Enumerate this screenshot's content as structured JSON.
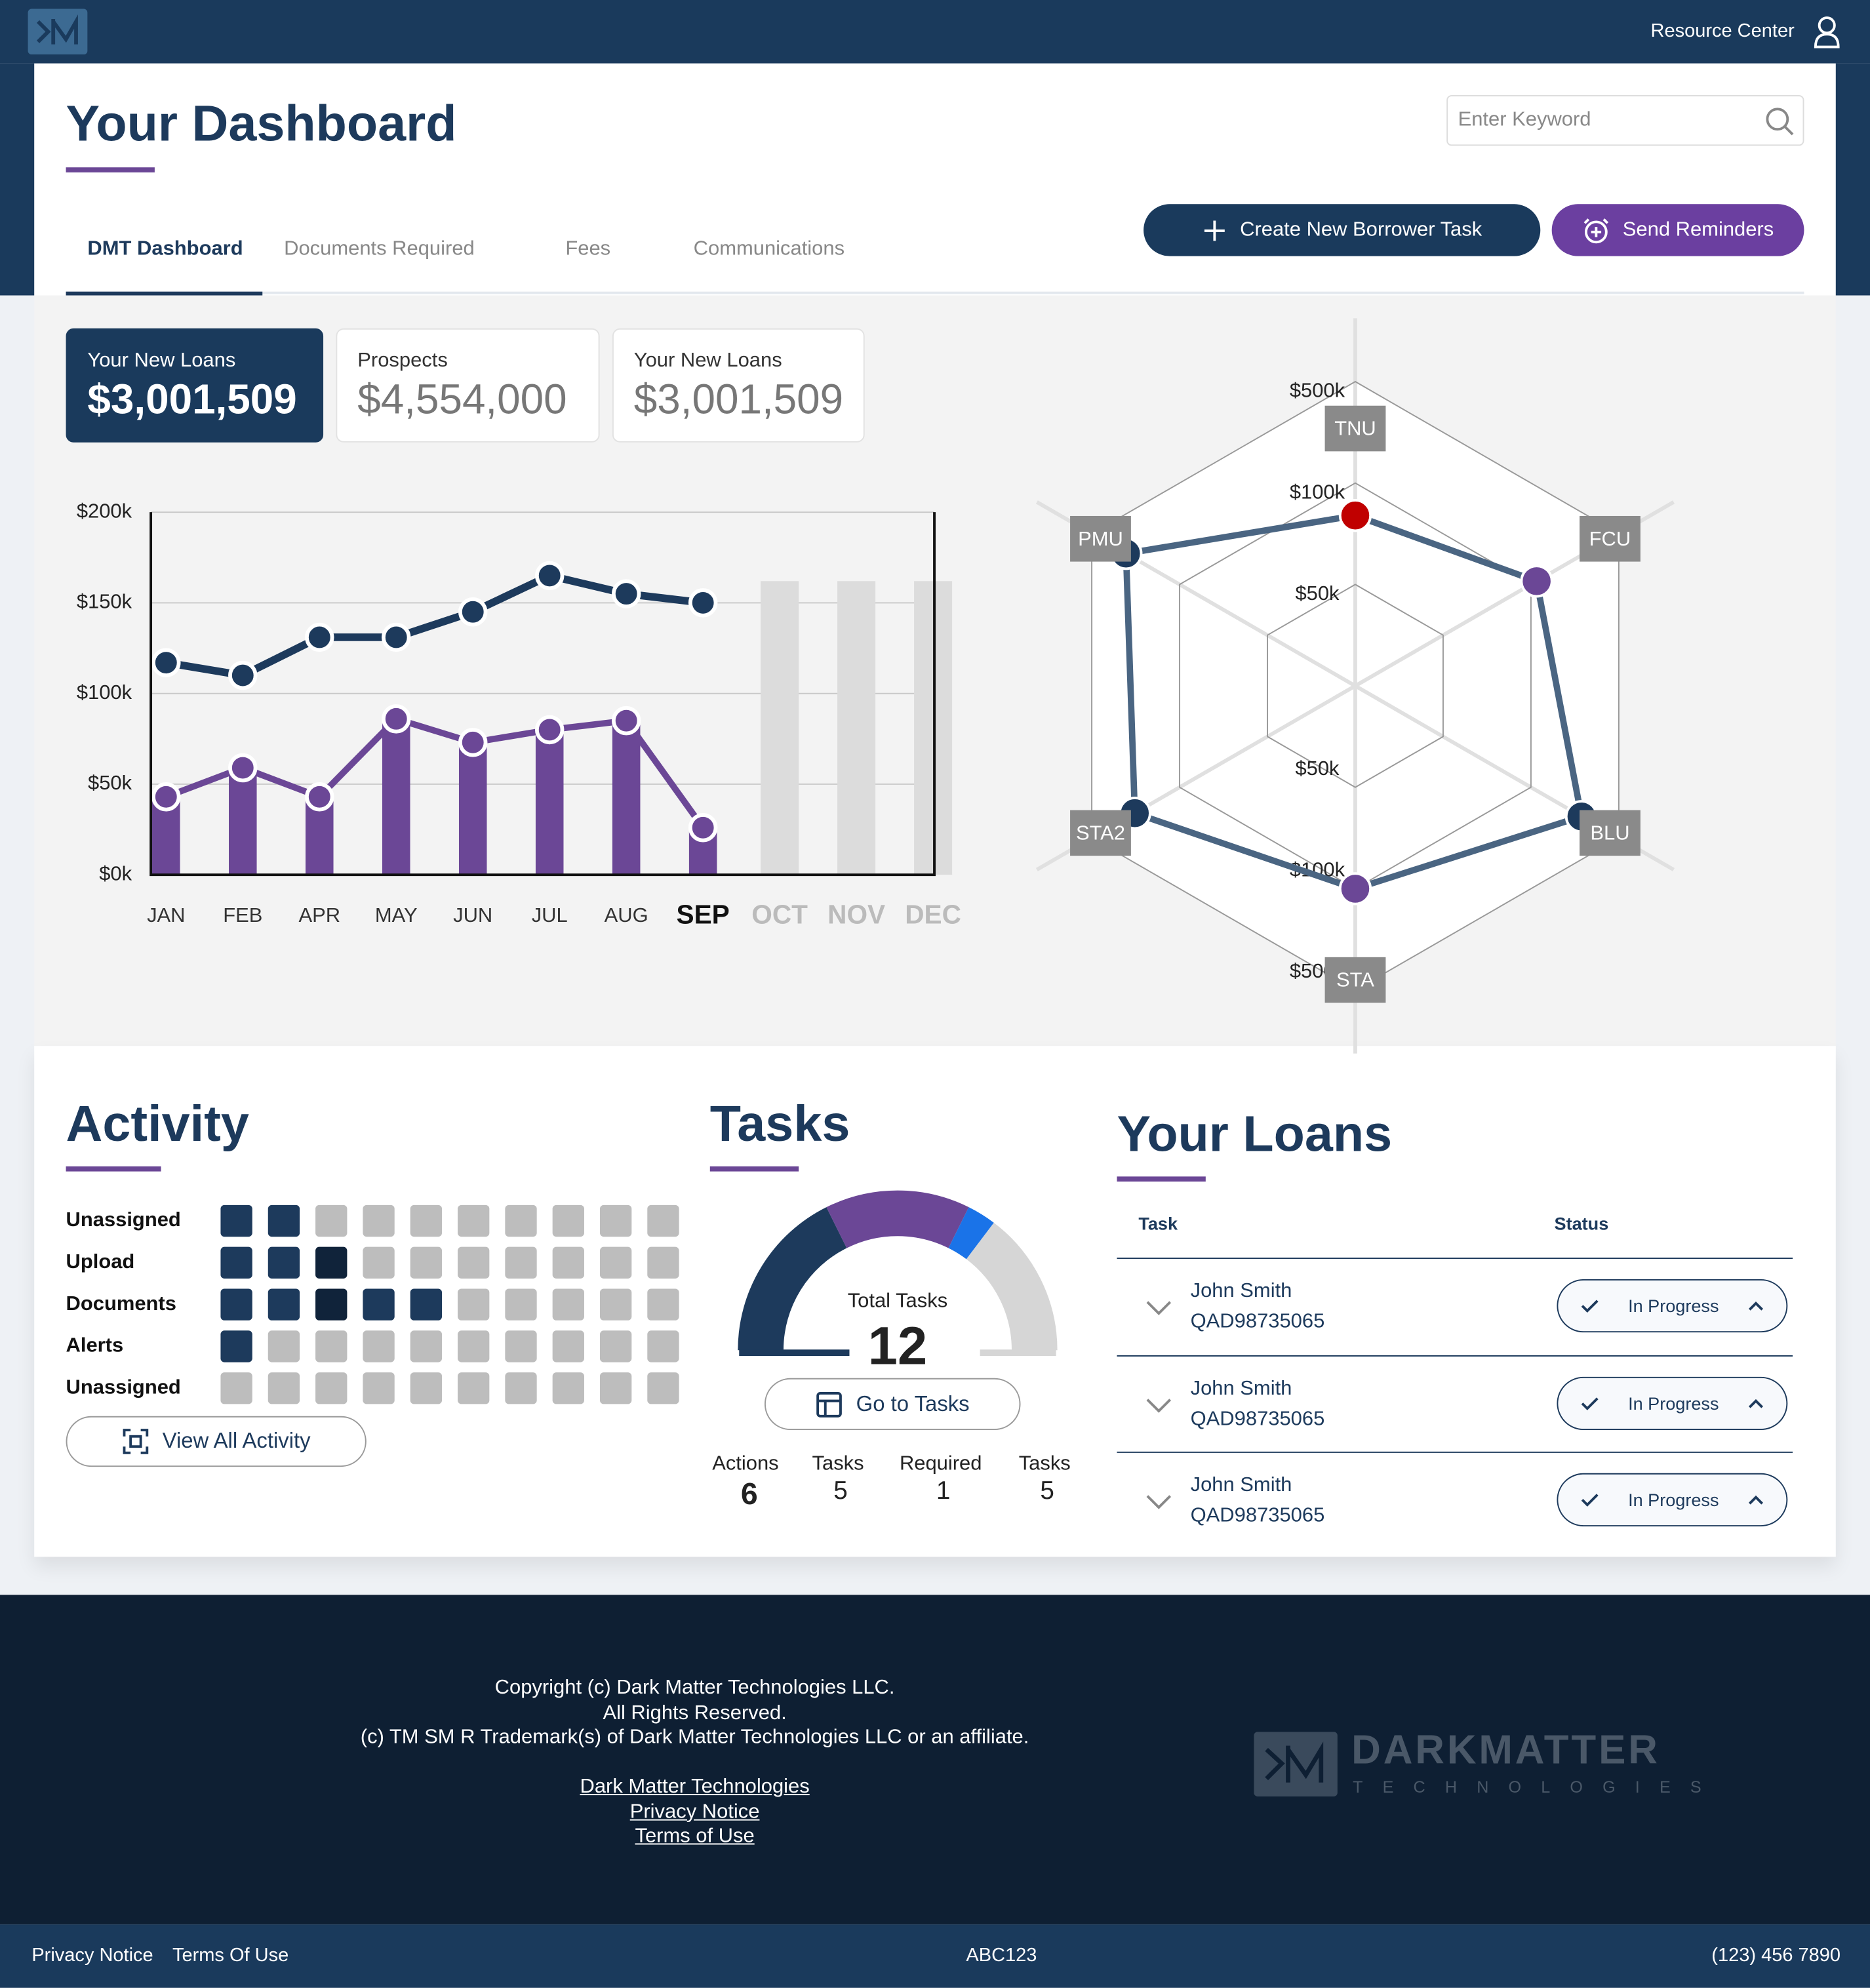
{
  "header": {
    "resource_center": "Resource Center"
  },
  "dashboard": {
    "title": "Your Dashboard",
    "search_placeholder": "Enter Keyword",
    "tabs": [
      "DMT Dashboard",
      "Documents Required",
      "Fees",
      "Communications"
    ],
    "buttons": [
      "Create New Borrower Task",
      "Send Reminders"
    ]
  },
  "kpis": [
    {
      "label": "Your New Loans",
      "value": "$3,001,509"
    },
    {
      "label": "Prospects",
      "value": "$4,554,000"
    },
    {
      "label": "Your New Loans",
      "value": "$3,001,509"
    }
  ],
  "chart_data": [
    {
      "type": "line",
      "categories": [
        "JAN",
        "FEB",
        "APR",
        "MAY",
        "JUN",
        "JUL",
        "AUG",
        "SEP",
        "OCT",
        "NOV",
        "DEC"
      ],
      "ylim": [
        0,
        200
      ],
      "yticks": [
        {
          "value": 0,
          "label": "$0k"
        },
        {
          "value": 50,
          "label": "$50k"
        },
        {
          "value": 100,
          "label": "$100k"
        },
        {
          "value": 150,
          "label": "$150k"
        },
        {
          "value": 200,
          "label": "$200k"
        }
      ],
      "grid": true,
      "series": [
        {
          "style": "bar",
          "color": "#dcdcdc",
          "values": [
            null,
            null,
            null,
            null,
            null,
            null,
            null,
            null,
            162,
            162,
            162
          ]
        },
        {
          "style": "bar-line",
          "color": "#6b4796",
          "values": [
            43,
            59,
            43,
            86,
            73,
            80,
            85,
            26,
            null,
            null,
            null
          ]
        },
        {
          "style": "line",
          "color": "#1d3a5c",
          "values": [
            117,
            110,
            131,
            131,
            145,
            165,
            155,
            150,
            null,
            null,
            null
          ]
        }
      ]
    },
    {
      "type": "radar",
      "categories": [
        "TNU",
        "FCU",
        "BLU",
        "STA",
        "STA2",
        "PMU"
      ],
      "values": [
        84,
        126,
        330,
        100,
        304,
        344
      ],
      "point_colors": [
        "#c00000",
        "#6b4796",
        "#1d3a5c",
        "#6b4796",
        "#1d3a5c",
        "#1d3a5c"
      ],
      "line_color": "#4a6582",
      "rticks": [
        {
          "value": 50,
          "label": "$50k"
        },
        {
          "value": 100,
          "label": "$100k"
        },
        {
          "value": 500,
          "label": "$500k"
        }
      ]
    }
  ],
  "activity": {
    "title": "Activity",
    "colors": [
      "#bdbdbd",
      "#1d3a5c",
      "#10233a"
    ],
    "rows": [
      {
        "label": "Unassigned",
        "cells": [
          1,
          1,
          0,
          0,
          0,
          0,
          0,
          0,
          0,
          0
        ]
      },
      {
        "label": "Upload",
        "cells": [
          1,
          1,
          2,
          0,
          0,
          0,
          0,
          0,
          0,
          0
        ]
      },
      {
        "label": "Documents",
        "cells": [
          1,
          1,
          2,
          1,
          1,
          0,
          0,
          0,
          0,
          0
        ]
      },
      {
        "label": "Alerts",
        "cells": [
          1,
          0,
          0,
          0,
          0,
          0,
          0,
          0,
          0,
          0
        ]
      },
      {
        "label": "Unassigned",
        "cells": [
          0,
          0,
          0,
          0,
          0,
          0,
          0,
          0,
          0,
          0
        ]
      }
    ],
    "button": "View All Activity"
  },
  "tasks": {
    "title": "Tasks",
    "total_label": "Total Tasks",
    "total": 12,
    "button": "Go to Tasks",
    "segment_colors": [
      "#1d3a5c",
      "#6b4796",
      "#1a73e8",
      "#d6d6d6"
    ],
    "stats": [
      {
        "label": "Actions",
        "value": 6
      },
      {
        "label": "Tasks",
        "value": 5
      },
      {
        "label": "Required",
        "value": 1
      },
      {
        "label": "Tasks",
        "value": 5
      }
    ]
  },
  "loans": {
    "title": "Your Loans",
    "columns": [
      "Task",
      "Status"
    ],
    "rows": [
      {
        "name": "John Smith",
        "id": "QAD98735065",
        "status": "In Progress"
      },
      {
        "name": "John Smith",
        "id": "QAD98735065",
        "status": "In Progress"
      },
      {
        "name": "John Smith",
        "id": "QAD98735065",
        "status": "In Progress"
      }
    ]
  },
  "footer": {
    "lines": [
      "Copyright (c) Dark Matter Technologies LLC.",
      "All Rights Reserved.",
      "(c) TM SM R Trademark(s) of Dark Matter Technologies LLC or an affiliate."
    ],
    "links": [
      "Dark Matter Technologies",
      "Privacy Notice",
      "Terms of Use"
    ],
    "brand": "DARKMATTER",
    "brand_sub": "TECHNOLOGIES",
    "bottom_left": [
      "Privacy Notice",
      "Terms Of Use"
    ],
    "bottom_center": "ABC123",
    "bottom_right": "(123) 456 7890"
  }
}
